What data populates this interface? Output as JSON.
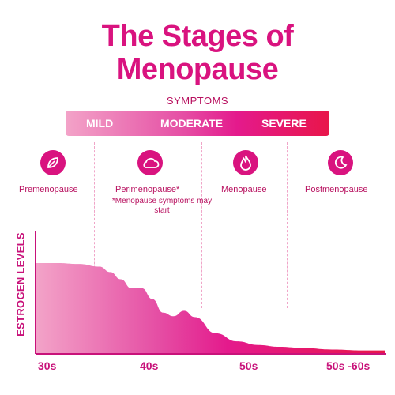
{
  "title": {
    "line1": "The Stages of",
    "line2": "Menopause"
  },
  "symptoms": {
    "label": "SYMPTOMS",
    "severity_levels": [
      "MILD",
      "MODERATE",
      "SEVERE"
    ]
  },
  "stages": [
    {
      "label": "Premenopause",
      "icon": "leaf-icon"
    },
    {
      "label": "Perimenopause*",
      "icon": "cloud-icon"
    },
    {
      "label": "Menopause",
      "icon": "flame-icon"
    },
    {
      "label": "Postmenopause",
      "icon": "moon-icon"
    }
  ],
  "stage_note": "*Menopause symptoms may start",
  "colors": {
    "brand": "#d9137f",
    "gradient_start": "#f3a3c8",
    "gradient_end": "#e8164a"
  },
  "chart_data": {
    "type": "area",
    "title": "",
    "ylabel": "ESTROGEN LEVELS",
    "xlabel": "",
    "x_tick_labels": [
      "30s",
      "40s",
      "50s",
      "50s -60s"
    ],
    "x": [
      30,
      32,
      34,
      36,
      37,
      38,
      39,
      40,
      41,
      42,
      43,
      44,
      45,
      47,
      49,
      51,
      53,
      55,
      58,
      61,
      63
    ],
    "values": [
      100,
      100,
      99,
      96,
      90,
      82,
      72,
      72,
      60,
      45,
      41,
      47,
      40,
      22,
      13,
      9,
      7,
      6,
      4,
      3,
      3
    ],
    "y_range": [
      0,
      100
    ],
    "grid": false,
    "legend": "none"
  }
}
